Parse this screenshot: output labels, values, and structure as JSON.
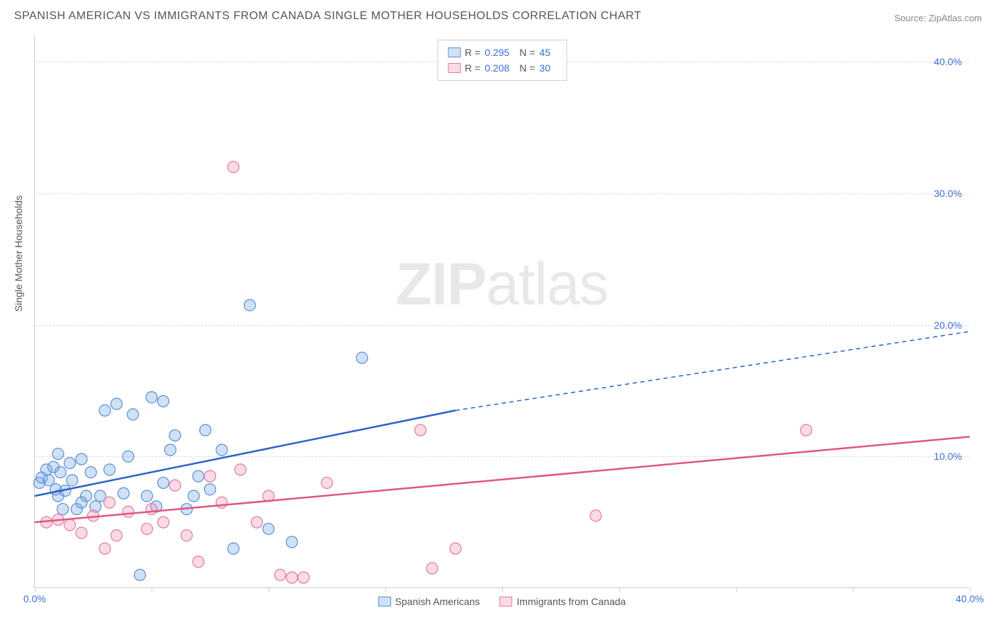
{
  "title": "SPANISH AMERICAN VS IMMIGRANTS FROM CANADA SINGLE MOTHER HOUSEHOLDS CORRELATION CHART",
  "source": "Source: ZipAtlas.com",
  "ylabel": "Single Mother Households",
  "watermark": {
    "bold": "ZIP",
    "light": "atlas"
  },
  "chart": {
    "xlim": [
      0,
      40
    ],
    "ylim": [
      0,
      42
    ],
    "yticks": [
      10,
      20,
      30,
      40
    ],
    "ytick_labels": [
      "10.0%",
      "20.0%",
      "30.0%",
      "40.0%"
    ],
    "xticks": [
      0,
      5,
      10,
      15,
      20,
      25,
      30,
      35,
      40
    ],
    "xtick_labels": {
      "0": "0.0%",
      "40": "40.0%"
    },
    "grid_color": "#dddddd",
    "axis_color": "#cccccc",
    "background_color": "#ffffff",
    "marker_radius": 8,
    "marker_stroke_width": 1.2,
    "line_width": 2.5
  },
  "series": [
    {
      "key": "spanish",
      "label": "Spanish Americans",
      "fill": "rgba(120,170,230,0.35)",
      "stroke": "#5a8fd6",
      "line_color": "#2b62c7",
      "r_value": "0.295",
      "n_value": "45",
      "trend": {
        "x1": 0,
        "y1": 7.0,
        "x2_solid": 18,
        "y2_solid": 13.5,
        "x2_dash": 40,
        "y2_dash": 19.5
      },
      "points": [
        [
          0.2,
          8.0
        ],
        [
          0.3,
          8.4
        ],
        [
          0.5,
          9.0
        ],
        [
          0.6,
          8.2
        ],
        [
          0.8,
          9.2
        ],
        [
          1.0,
          7.0
        ],
        [
          1.1,
          8.8
        ],
        [
          1.3,
          7.4
        ],
        [
          1.5,
          9.5
        ],
        [
          1.6,
          8.2
        ],
        [
          1.8,
          6.0
        ],
        [
          1.0,
          10.2
        ],
        [
          2.0,
          9.8
        ],
        [
          2.2,
          7.0
        ],
        [
          2.4,
          8.8
        ],
        [
          2.6,
          6.2
        ],
        [
          2.8,
          7.0
        ],
        [
          3.0,
          13.5
        ],
        [
          3.2,
          9.0
        ],
        [
          3.5,
          14.0
        ],
        [
          3.8,
          7.2
        ],
        [
          4.0,
          10.0
        ],
        [
          4.2,
          13.2
        ],
        [
          4.5,
          1.0
        ],
        [
          5.0,
          14.5
        ],
        [
          5.2,
          6.2
        ],
        [
          5.5,
          8.0
        ],
        [
          5.8,
          10.5
        ],
        [
          6.0,
          11.6
        ],
        [
          6.5,
          6.0
        ],
        [
          7.0,
          8.5
        ],
        [
          7.3,
          12.0
        ],
        [
          7.5,
          7.5
        ],
        [
          8.0,
          10.5
        ],
        [
          8.5,
          3.0
        ],
        [
          9.2,
          21.5
        ],
        [
          10.0,
          4.5
        ],
        [
          11.0,
          3.5
        ],
        [
          14.0,
          17.5
        ],
        [
          2.0,
          6.5
        ],
        [
          1.2,
          6.0
        ],
        [
          0.9,
          7.5
        ],
        [
          6.8,
          7.0
        ],
        [
          4.8,
          7.0
        ],
        [
          5.5,
          14.2
        ]
      ]
    },
    {
      "key": "canada",
      "label": "Immigrants from Canada",
      "fill": "rgba(240,150,180,0.35)",
      "stroke": "#e07ba0",
      "line_color": "#e0567f",
      "r_value": "0.208",
      "n_value": "30",
      "trend": {
        "x1": 0,
        "y1": 5.0,
        "x2_solid": 40,
        "y2_solid": 11.5,
        "x2_dash": 40,
        "y2_dash": 11.5
      },
      "points": [
        [
          0.5,
          5.0
        ],
        [
          1.0,
          5.2
        ],
        [
          1.5,
          4.8
        ],
        [
          2.0,
          4.2
        ],
        [
          2.5,
          5.5
        ],
        [
          3.0,
          3.0
        ],
        [
          3.2,
          6.5
        ],
        [
          3.5,
          4.0
        ],
        [
          4.0,
          5.8
        ],
        [
          4.8,
          4.5
        ],
        [
          5.0,
          6.0
        ],
        [
          5.5,
          5.0
        ],
        [
          6.0,
          7.8
        ],
        [
          6.5,
          4.0
        ],
        [
          7.0,
          2.0
        ],
        [
          7.5,
          8.5
        ],
        [
          8.0,
          6.5
        ],
        [
          8.5,
          32.0
        ],
        [
          8.8,
          9.0
        ],
        [
          9.5,
          5.0
        ],
        [
          10.0,
          7.0
        ],
        [
          10.5,
          1.0
        ],
        [
          11.0,
          0.8
        ],
        [
          11.5,
          0.8
        ],
        [
          12.5,
          8.0
        ],
        [
          16.5,
          12.0
        ],
        [
          18.0,
          3.0
        ],
        [
          24.0,
          5.5
        ],
        [
          33.0,
          12.0
        ],
        [
          17.0,
          1.5
        ]
      ]
    }
  ],
  "stats_labels": {
    "r": "R =",
    "n": "N ="
  }
}
